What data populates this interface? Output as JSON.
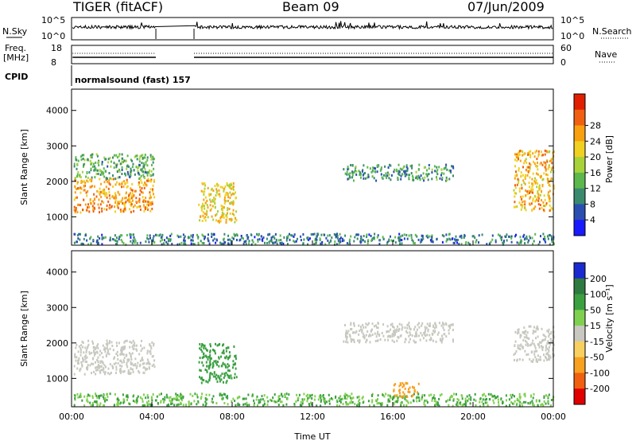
{
  "header": {
    "radar": "TIGER (fitACF)",
    "beam": "Beam 09",
    "date": "07/Jun/2009"
  },
  "top_panels": {
    "nsky_label": "N.Sky",
    "nsky_ticks": [
      "10^5",
      "10^0"
    ],
    "nsearch_label": "N.Search",
    "nsearch_ticks": [
      "10^5",
      "10^0"
    ],
    "freq_label_1": "Freq.",
    "freq_label_2": "[MHz]",
    "freq_ticks": [
      "18",
      "8"
    ],
    "nave_label": "Nave",
    "nave_ticks": [
      "60",
      "0"
    ],
    "cpid_label": "CPID",
    "cpid_text": "normalsound (fast) 157"
  },
  "chart_data": [
    {
      "type": "heatmap",
      "name": "power",
      "ylabel": "Slant Range [km]",
      "yticks": [
        "1000",
        "2000",
        "3000",
        "4000"
      ],
      "ylim": [
        200,
        4600
      ],
      "colorbar_label": "Power [dB]",
      "colorbar_ticks": [
        "4",
        "8",
        "12",
        "16",
        "20",
        "24",
        "28"
      ],
      "colorbar_colors": [
        "#1a1aff",
        "#2a4fb0",
        "#3a8a6e",
        "#5cb84c",
        "#a8d23a",
        "#f0d020",
        "#f8a010",
        "#f06010",
        "#e02000"
      ],
      "data_gaps_ut_hours": [
        [
          4.2,
          6.1
        ]
      ],
      "echo_regions": [
        {
          "t0": 0.1,
          "t1": 4.1,
          "r0": 1150,
          "r1": 2100,
          "level": 24
        },
        {
          "t0": 0.1,
          "t1": 4.1,
          "r0": 2100,
          "r1": 2800,
          "level": 12
        },
        {
          "t0": 6.3,
          "t1": 8.2,
          "r0": 850,
          "r1": 2000,
          "level": 20
        },
        {
          "t0": 13.5,
          "t1": 19.0,
          "r0": 2050,
          "r1": 2500,
          "level": 10
        },
        {
          "t0": 22.0,
          "t1": 24.0,
          "r0": 1200,
          "r1": 2900,
          "level": 22
        },
        {
          "t0": 0.1,
          "t1": 24.0,
          "r0": 250,
          "r1": 550,
          "level": 8
        }
      ]
    },
    {
      "type": "heatmap",
      "name": "velocity",
      "ylabel": "Slant Range [km]",
      "yticks": [
        "1000",
        "2000",
        "3000",
        "4000"
      ],
      "ylim": [
        200,
        4600
      ],
      "xlabel": "Time UT",
      "xticks": [
        "00:00",
        "04:00",
        "08:00",
        "12:00",
        "16:00",
        "20:00",
        "00:00"
      ],
      "xlim_hours": [
        0,
        24
      ],
      "colorbar_label": "Velocity [m s⁻¹]",
      "colorbar_ticks": [
        "200",
        "100",
        "50",
        "15",
        "-15",
        "-50",
        "-100",
        "-200"
      ],
      "colorbar_colors": [
        "#1a2ad0",
        "#2f7a40",
        "#3aa040",
        "#80d050",
        "#c8c8c0",
        "#f8d060",
        "#f8a020",
        "#f06010",
        "#e00000"
      ],
      "data_gaps_ut_hours": [
        [
          4.2,
          6.1
        ]
      ],
      "echo_regions": [
        {
          "t0": 0.1,
          "t1": 4.1,
          "r0": 1150,
          "r1": 2100,
          "level": 0
        },
        {
          "t0": 6.3,
          "t1": 8.2,
          "r0": 900,
          "r1": 2000,
          "level": 40
        },
        {
          "t0": 13.5,
          "t1": 19.0,
          "r0": 2050,
          "r1": 2600,
          "level": 0
        },
        {
          "t0": 22.0,
          "t1": 24.0,
          "r0": 1500,
          "r1": 2500,
          "level": 0
        },
        {
          "t0": 0.1,
          "t1": 24.0,
          "r0": 250,
          "r1": 600,
          "level": 30
        },
        {
          "t0": 16.0,
          "t1": 17.3,
          "r0": 500,
          "r1": 900,
          "level": -60
        }
      ]
    }
  ]
}
